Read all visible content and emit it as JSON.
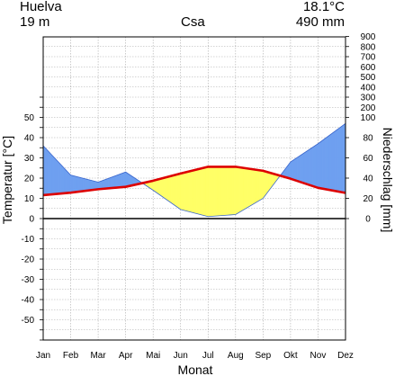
{
  "header": {
    "station": "Huelva",
    "elevation": "19 m",
    "climate_class": "Csa",
    "mean_temp": "18.1°C",
    "annual_precip": "490 mm"
  },
  "chart_data": {
    "type": "line",
    "xlabel": "Monat",
    "ylabel_left": "Temperatur [°C]",
    "ylabel_right": "Niederschlag [mm]",
    "categories": [
      "Jan",
      "Feb",
      "Mar",
      "Apr",
      "Mai",
      "Jun",
      "Jul",
      "Aug",
      "Sep",
      "Okt",
      "Nov",
      "Dez"
    ],
    "temp_ylim": [
      -60,
      60
    ],
    "temp_ticks": [
      50,
      40,
      30,
      20,
      10,
      0,
      -10,
      -20,
      -30,
      -40,
      -50
    ],
    "precip_ticks": [
      {
        "mm": 900,
        "label": "900"
      },
      {
        "mm": 800,
        "label": "800"
      },
      {
        "mm": 700,
        "label": "700"
      },
      {
        "mm": 600,
        "label": "600"
      },
      {
        "mm": 500,
        "label": "500"
      },
      {
        "mm": 400,
        "label": "400"
      },
      {
        "mm": 300,
        "label": "300"
      },
      {
        "mm": 200,
        "label": "200"
      },
      {
        "mm": 100,
        "label": "100"
      },
      {
        "mm": 80,
        "label": "80"
      },
      {
        "mm": 60,
        "label": "60"
      },
      {
        "mm": 40,
        "label": "40"
      },
      {
        "mm": 20,
        "label": "20"
      },
      {
        "mm": 0,
        "label": "0"
      }
    ],
    "series": [
      {
        "name": "Temperatur",
        "unit": "°C",
        "color": "#dd0000",
        "values": [
          11.6,
          12.8,
          14.5,
          15.7,
          18.7,
          22.3,
          25.6,
          25.6,
          23.6,
          19.7,
          15.2,
          12.7
        ]
      },
      {
        "name": "Niederschlag",
        "unit": "mm",
        "color": "#6699ff",
        "values": [
          72,
          43,
          36,
          46,
          28,
          9,
          2,
          4,
          20,
          56,
          74,
          94
        ]
      }
    ],
    "colors": {
      "humid": "#6e9ff0",
      "arid": "#ffff66",
      "temp_line": "#dd0000",
      "zero_line": "#000000",
      "grid": "#aaaaaa"
    },
    "grid": true
  }
}
